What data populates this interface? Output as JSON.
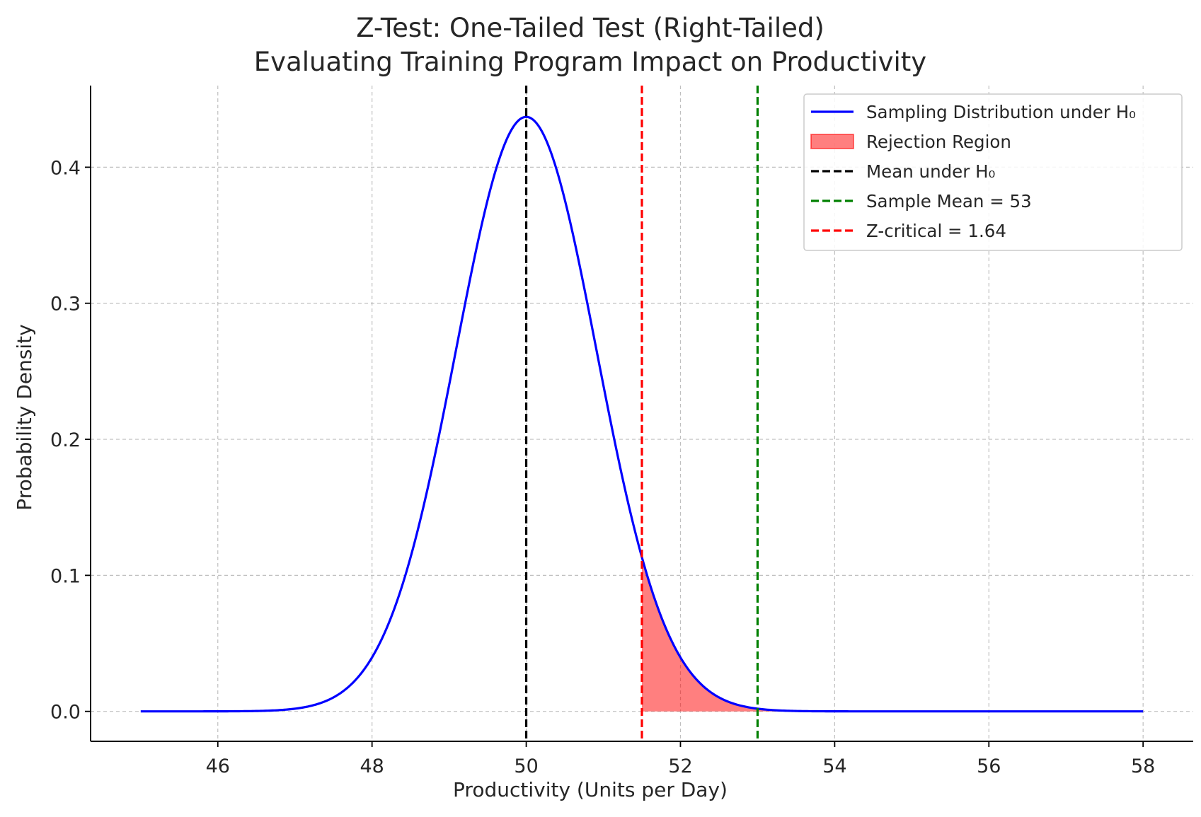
{
  "chart_data": {
    "type": "line",
    "title_lines": [
      "Z-Test: One-Tailed Test (Right-Tailed)",
      "Evaluating Training Program Impact on Productivity"
    ],
    "xlabel": "Productivity (Units per Day)",
    "ylabel": "Probability Density",
    "xlim": [
      44.35,
      58.65
    ],
    "ylim": [
      -0.022,
      0.46
    ],
    "x_ticks": [
      46,
      48,
      50,
      52,
      54,
      56,
      58
    ],
    "y_ticks": [
      0.0,
      0.1,
      0.2,
      0.3,
      0.4
    ],
    "y_tick_labels": [
      "0.0",
      "0.1",
      "0.2",
      "0.3",
      "0.4"
    ],
    "grid": true,
    "distribution": {
      "name": "Sampling Distribution under H₀",
      "mean": 50,
      "std_error": 0.9129,
      "x_range": [
        45,
        58
      ],
      "color": "#0000ff"
    },
    "rejection_region": {
      "name": "Rejection Region",
      "x_start": 51.5,
      "x_end": 58,
      "color": "#ff0000",
      "opacity": 0.5
    },
    "vertical_lines": [
      {
        "name": "Mean under H₀",
        "x": 50,
        "color": "#000000",
        "style": "dashed"
      },
      {
        "name": "Sample Mean = 53",
        "x": 53,
        "color": "#008000",
        "style": "dashed"
      },
      {
        "name": "Z-critical = 1.64",
        "x": 51.5,
        "color": "#ff0000",
        "style": "dashed"
      }
    ],
    "legend": {
      "position": "upper right",
      "entries": [
        {
          "label": "Sampling Distribution under H₀",
          "kind": "line",
          "color": "#0000ff"
        },
        {
          "label": "Rejection Region",
          "kind": "patch",
          "color": "#ff0000"
        },
        {
          "label": "Mean under H₀",
          "kind": "dashed",
          "color": "#000000"
        },
        {
          "label": "Sample Mean = 53",
          "kind": "dashed",
          "color": "#008000"
        },
        {
          "label": "Z-critical = 1.64",
          "kind": "dashed",
          "color": "#ff0000"
        }
      ]
    }
  }
}
